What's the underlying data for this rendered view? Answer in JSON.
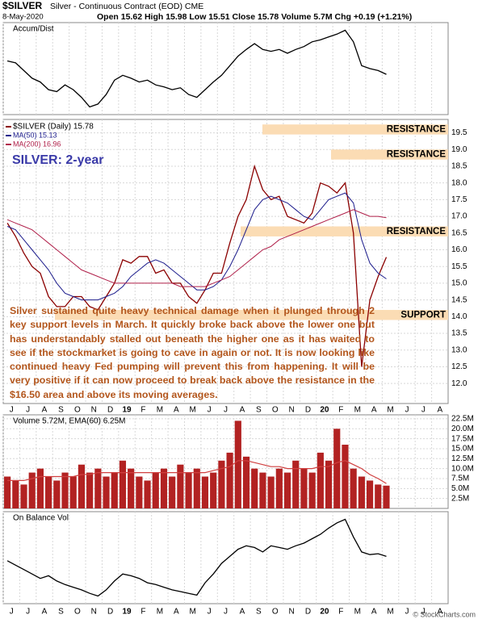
{
  "header": {
    "symbol": "$SILVER",
    "name": "Silver - Continuous Contract (EOD) CME",
    "date": "8-May-2020",
    "quote": "Open 15.62  High 15.98  Low 15.51  Close 15.78  Volume 5.7M  Chg +0.19 (+1.21%)",
    "credit": "© StockCharts.com"
  },
  "chart_data": [
    {
      "type": "line",
      "title": "Accum/Dist",
      "color": "#000000",
      "values": [
        60,
        58,
        50,
        42,
        38,
        30,
        28,
        35,
        30,
        22,
        12,
        15,
        25,
        40,
        45,
        42,
        38,
        40,
        35,
        33,
        30,
        32,
        25,
        22,
        30,
        38,
        45,
        55,
        65,
        72,
        78,
        72,
        70,
        72,
        68,
        72,
        75,
        80,
        82,
        85,
        88,
        92,
        80,
        55,
        52,
        50,
        46,
        null,
        null,
        null,
        null,
        null,
        null,
        null
      ]
    },
    {
      "type": "line",
      "subtitle": "SILVER: 2-year",
      "grid": true,
      "categories": [
        "J",
        null,
        "J",
        null,
        "A",
        null,
        "S",
        null,
        "O",
        null,
        "N",
        null,
        "D",
        null,
        "19",
        null,
        "F",
        null,
        "M",
        null,
        "A",
        null,
        "M",
        null,
        "J",
        null,
        "J",
        null,
        "A",
        null,
        "S",
        null,
        "O",
        null,
        "N",
        null,
        "D",
        null,
        "20",
        null,
        "F",
        null,
        "M",
        null,
        "A",
        null,
        "M",
        null,
        "J",
        null,
        "J",
        null,
        "A",
        null
      ],
      "series": [
        {
          "name": "$SILVER (Daily) 15.78",
          "color": "#8b0000",
          "values": [
            16.8,
            16.4,
            15.9,
            15.5,
            15.3,
            14.6,
            14.3,
            14.3,
            14.6,
            14.6,
            14.3,
            14.2,
            14.6,
            15.0,
            15.7,
            15.6,
            15.8,
            15.8,
            15.3,
            15.4,
            15.0,
            15.0,
            14.6,
            14.4,
            14.8,
            15.3,
            15.3,
            16.2,
            17.0,
            17.5,
            18.5,
            17.8,
            17.5,
            17.6,
            17.0,
            16.9,
            16.8,
            17.1,
            18.0,
            17.9,
            17.7,
            18.0,
            16.5,
            12.5,
            14.5,
            15.2,
            15.78,
            null,
            null,
            null,
            null,
            null,
            null,
            null
          ]
        },
        {
          "name": "MA(50) 15.13",
          "color": "#1c1c8c",
          "values": [
            16.7,
            16.6,
            16.3,
            16.0,
            15.7,
            15.4,
            15.0,
            14.7,
            14.6,
            14.5,
            14.5,
            14.5,
            14.6,
            14.7,
            14.9,
            15.2,
            15.4,
            15.6,
            15.7,
            15.6,
            15.4,
            15.2,
            15.0,
            14.8,
            14.8,
            14.9,
            15.1,
            15.5,
            16.0,
            16.6,
            17.2,
            17.5,
            17.6,
            17.5,
            17.4,
            17.2,
            17.0,
            16.9,
            17.2,
            17.5,
            17.6,
            17.7,
            17.4,
            16.3,
            15.6,
            15.3,
            15.13,
            null,
            null,
            null,
            null,
            null,
            null,
            null
          ]
        },
        {
          "name": "MA(200) 16.96",
          "color": "#b0204a",
          "values": [
            16.9,
            16.8,
            16.7,
            16.6,
            16.4,
            16.2,
            16.0,
            15.8,
            15.6,
            15.4,
            15.3,
            15.2,
            15.1,
            15.0,
            15.0,
            15.0,
            15.0,
            15.0,
            15.0,
            15.0,
            15.0,
            14.9,
            14.9,
            14.9,
            14.9,
            15.0,
            15.1,
            15.2,
            15.4,
            15.6,
            15.8,
            16.0,
            16.1,
            16.3,
            16.4,
            16.5,
            16.6,
            16.7,
            16.8,
            16.9,
            17.0,
            17.1,
            17.2,
            17.1,
            17.0,
            17.0,
            16.96,
            null,
            null,
            null,
            null,
            null,
            null,
            null
          ]
        }
      ],
      "ylim": [
        11.4,
        19.9
      ],
      "yticks": [
        {
          "value": 12,
          "label": "12.0"
        },
        {
          "value": 12.5,
          "label": "12.5"
        },
        {
          "value": 13,
          "label": "13.0"
        },
        {
          "value": 13.5,
          "label": "13.5"
        },
        {
          "value": 14,
          "label": "14.0"
        },
        {
          "value": 14.5,
          "label": "14.5"
        },
        {
          "value": 15,
          "label": "15.0"
        },
        {
          "value": 15.5,
          "label": "15.5"
        },
        {
          "value": 16,
          "label": "16.0"
        },
        {
          "value": 16.5,
          "label": "16.5"
        },
        {
          "value": 17,
          "label": "17.0"
        },
        {
          "value": 17.5,
          "label": "17.5"
        },
        {
          "value": 18,
          "label": "18.0"
        },
        {
          "value": 18.5,
          "label": "18.5"
        },
        {
          "value": 19,
          "label": "19.0"
        },
        {
          "value": 19.5,
          "label": "19.5"
        }
      ],
      "bands": [
        {
          "text": "RESISTANCE",
          "low": 19.45,
          "high": 19.75,
          "color": "#fbdcb4"
        },
        {
          "text": "RESISTANCE",
          "low": 18.7,
          "high": 19.0,
          "color": "#fbdcb4"
        },
        {
          "text": "RESISTANCE",
          "low": 16.4,
          "high": 16.7,
          "color": "#fbdcb4"
        },
        {
          "text": "SUPPORT",
          "low": 13.9,
          "high": 14.2,
          "color": "#fbdcb4"
        }
      ],
      "text_box": "Silver sustained quite heavy technical damage when it plunged through 2 key support levels in March. It quickly broke back above the lower one but has understandably stalled out beneath the higher one as it has waited to see if the stockmarket is going to cave in again or not. It is now looking like continued heavy Fed pumping will prevent this from happening. It will be very positive if it can now proceed to break back above the resistance in the $16.50 area and above its moving averages."
    },
    {
      "type": "bar",
      "title": "Volume 5.72M, EMA(60) 6.25M",
      "color": "#b22222",
      "ema_color": "#d04040",
      "values": [
        8,
        7,
        6,
        9,
        10,
        8,
        7,
        9,
        8,
        11,
        9,
        10,
        8,
        9,
        12,
        10,
        8,
        7,
        9,
        10,
        8,
        11,
        9,
        10,
        8,
        9,
        12,
        14,
        22,
        13,
        10,
        9,
        8,
        10,
        9,
        12,
        10,
        9,
        14,
        12,
        20,
        16,
        10,
        8,
        7,
        6,
        5.72,
        null,
        null,
        null,
        null,
        null,
        null,
        null
      ],
      "ema": [
        7,
        7,
        7,
        7.5,
        8,
        8,
        8,
        8,
        8,
        8.5,
        8.5,
        9,
        9,
        9,
        9,
        9,
        9,
        9,
        9,
        9,
        9,
        9,
        9,
        9,
        9,
        9.5,
        10,
        10.5,
        12,
        12,
        11.5,
        11,
        10.5,
        10.5,
        10,
        10,
        10,
        10,
        10.5,
        10.5,
        11.5,
        12,
        11,
        10,
        8.5,
        7.5,
        6.25,
        null,
        null,
        null,
        null,
        null,
        null,
        null
      ],
      "ylim": [
        0,
        23.5
      ],
      "yticks": [
        {
          "value": 2.5,
          "label": "2.5M"
        },
        {
          "value": 5,
          "label": "5.0M"
        },
        {
          "value": 7.5,
          "label": "7.5M"
        },
        {
          "value": 10,
          "label": "10.0M"
        },
        {
          "value": 12.5,
          "label": "12.5M"
        },
        {
          "value": 15,
          "label": "15.0M"
        },
        {
          "value": 17.5,
          "label": "17.5M"
        },
        {
          "value": 20,
          "label": "20.0M"
        },
        {
          "value": 22.5,
          "label": "22.5M"
        }
      ]
    },
    {
      "type": "line",
      "title": "On Balance Vol",
      "color": "#000000",
      "categories": [
        "J",
        null,
        "J",
        null,
        "A",
        null,
        "S",
        null,
        "O",
        null,
        "N",
        null,
        "D",
        null,
        "19",
        null,
        "F",
        null,
        "M",
        null,
        "A",
        null,
        "M",
        null,
        "J",
        null,
        "J",
        null,
        "A",
        null,
        "S",
        null,
        "O",
        null,
        "N",
        null,
        "D",
        null,
        "20",
        null,
        "F",
        null,
        "M",
        null,
        "A",
        null,
        "M",
        null,
        "J",
        null,
        "J",
        null,
        "A",
        null
      ],
      "values": [
        45,
        40,
        35,
        30,
        25,
        28,
        22,
        18,
        15,
        12,
        8,
        5,
        12,
        22,
        30,
        28,
        25,
        20,
        18,
        15,
        12,
        10,
        8,
        6,
        20,
        30,
        42,
        50,
        58,
        62,
        60,
        55,
        62,
        60,
        58,
        62,
        65,
        70,
        75,
        82,
        88,
        92,
        72,
        55,
        52,
        53,
        50,
        null,
        null,
        null,
        null,
        null,
        null,
        null
      ]
    }
  ]
}
